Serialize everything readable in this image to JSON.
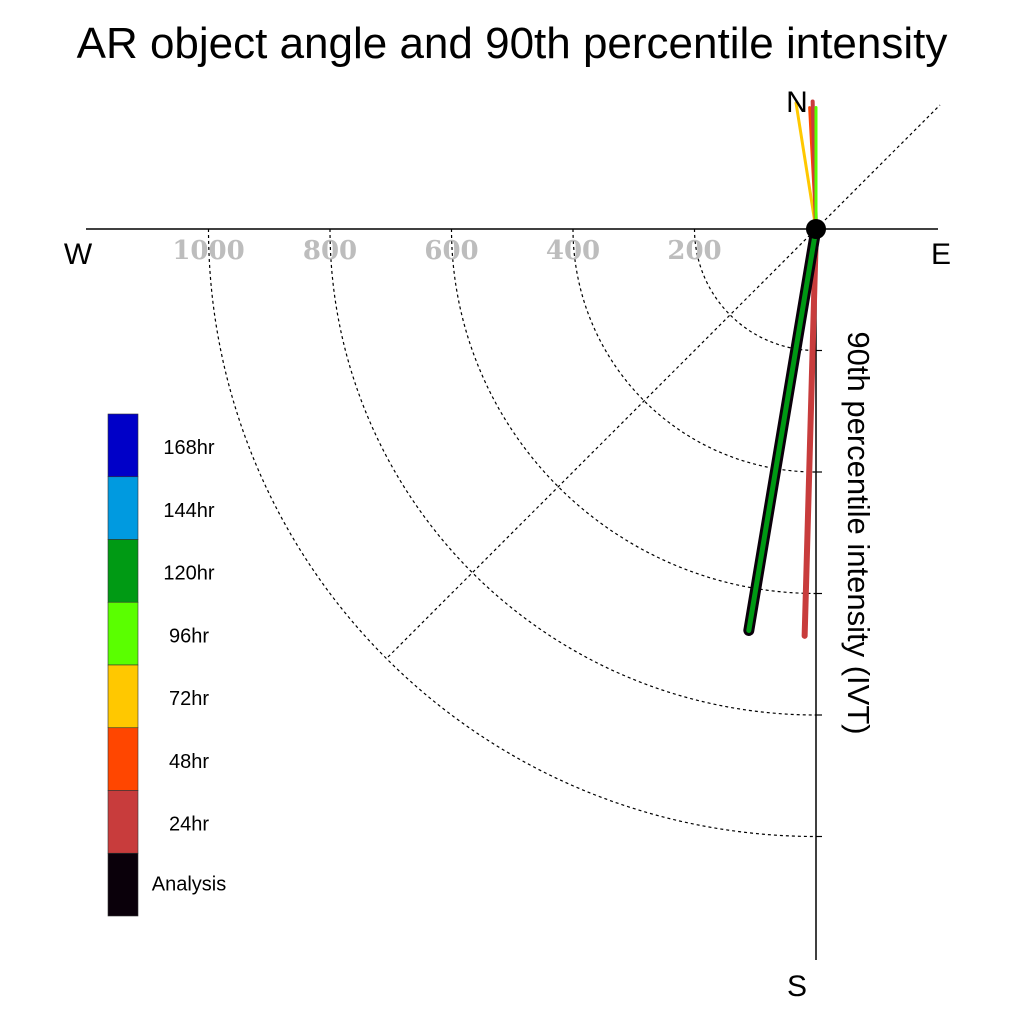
{
  "chart_data": {
    "type": "line",
    "title": "AR object angle and 90th percentile intensity",
    "ylabel": "90th percentile intensity (IVT)",
    "compass": {
      "north": "N",
      "south": "S",
      "east": "E",
      "west": "W"
    },
    "radial_ticks": [
      {
        "value": 200,
        "label": "200"
      },
      {
        "value": 400,
        "label": "400"
      },
      {
        "value": 600,
        "label": "600"
      },
      {
        "value": 800,
        "label": "800"
      },
      {
        "value": 1000,
        "label": "1000"
      }
    ],
    "radial_range": [
      0,
      1200
    ],
    "grid": true,
    "legend_position": "left",
    "legend": [
      {
        "label": "168hr",
        "color": "#0000c8"
      },
      {
        "label": "144hr",
        "color": "#009ae0"
      },
      {
        "label": "120hr",
        "color": "#009a14"
      },
      {
        "label": "96hr",
        "color": "#5aff00"
      },
      {
        "label": "72hr",
        "color": "#ffc800"
      },
      {
        "label": "48hr",
        "color": "#ff4600"
      },
      {
        "label": "24hr",
        "color": "#c83c3c"
      },
      {
        "label": "Analysis",
        "color": "#0a000a"
      }
    ],
    "series": [
      {
        "name": "72hr",
        "color": "#ffc800",
        "width": 3,
        "theta_deg": 171,
        "r": 210
      },
      {
        "name": "48hr",
        "color": "#ff4600",
        "width": 3,
        "theta_deg": 177,
        "r": 200
      },
      {
        "name": "24hr",
        "color": "#c83c3c",
        "width": 4,
        "theta_deg": 178.5,
        "r": 210
      },
      {
        "name": "96hr",
        "color": "#5aff00",
        "width": 3,
        "theta_deg": 180,
        "r": 200
      },
      {
        "name": "24hr",
        "color": "#c83c3c",
        "width": 6,
        "theta_deg": 1.6,
        "r": 670
      },
      {
        "name": "120hr",
        "color": "#009a14",
        "width": 7,
        "theta_deg": 9.5,
        "r": 670
      },
      {
        "name": "Analysis",
        "color": "#0a000a",
        "width": 11,
        "theta_deg": 9.5,
        "r": 670
      },
      {
        "name": "120hr",
        "color": "#009a14",
        "width": 5,
        "theta_deg": 9.5,
        "r": 670
      }
    ]
  }
}
